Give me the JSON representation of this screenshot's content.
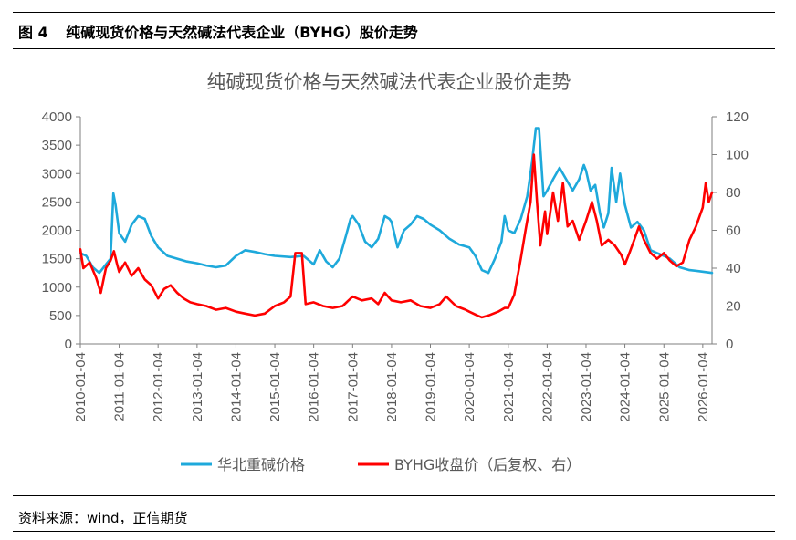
{
  "figure": {
    "number": "图 4",
    "caption": "纯碱现货价格与天然碱法代表企业（BYHG）股价走势",
    "source": "资料来源：wind，正信期货"
  },
  "chart_data": {
    "type": "line",
    "title": "纯碱现货价格与天然碱法代表企业股价走势",
    "x_ticks": [
      "2010-01-04",
      "2011-01-04",
      "2012-01-04",
      "2013-01-04",
      "2014-01-04",
      "2015-01-04",
      "2016-01-04",
      "2017-01-04",
      "2018-01-04",
      "2019-01-04",
      "2020-01-04",
      "2021-01-04",
      "2022-01-04",
      "2023-01-04",
      "2024-01-04",
      "2025-01-04",
      "2026-01-04"
    ],
    "x_range": [
      "2010-01-04",
      "2026-04-01"
    ],
    "y_left": {
      "range": [
        0,
        4000
      ],
      "ticks": [
        "0",
        "500",
        "1000",
        "1500",
        "2000",
        "2500",
        "3000",
        "3500",
        "4000"
      ]
    },
    "y_right": {
      "range": [
        0,
        120
      ],
      "ticks": [
        "0",
        "20",
        "40",
        "60",
        "80",
        "100",
        "120"
      ]
    },
    "legend_position": "bottom",
    "grid": false,
    "series": [
      {
        "name": "华北重碱价格",
        "axis": "left",
        "color": "#1EA9DB",
        "points": [
          [
            "2010-01-04",
            1600
          ],
          [
            "2010-03-01",
            1550
          ],
          [
            "2010-05-01",
            1350
          ],
          [
            "2010-07-01",
            1250
          ],
          [
            "2010-09-01",
            1400
          ],
          [
            "2010-10-15",
            1500
          ],
          [
            "2010-11-10",
            2650
          ],
          [
            "2010-12-01",
            2450
          ],
          [
            "2011-01-04",
            1950
          ],
          [
            "2011-03-01",
            1800
          ],
          [
            "2011-05-01",
            2100
          ],
          [
            "2011-07-01",
            2250
          ],
          [
            "2011-09-01",
            2200
          ],
          [
            "2011-11-01",
            1900
          ],
          [
            "2012-01-04",
            1700
          ],
          [
            "2012-04-01",
            1550
          ],
          [
            "2012-07-01",
            1500
          ],
          [
            "2012-10-01",
            1450
          ],
          [
            "2013-01-04",
            1420
          ],
          [
            "2013-04-01",
            1380
          ],
          [
            "2013-07-01",
            1350
          ],
          [
            "2013-10-01",
            1380
          ],
          [
            "2014-01-04",
            1550
          ],
          [
            "2014-04-01",
            1650
          ],
          [
            "2014-07-01",
            1620
          ],
          [
            "2014-10-01",
            1580
          ],
          [
            "2015-01-04",
            1550
          ],
          [
            "2015-06-01",
            1530
          ],
          [
            "2015-10-01",
            1550
          ],
          [
            "2016-01-04",
            1400
          ],
          [
            "2016-03-01",
            1650
          ],
          [
            "2016-05-01",
            1450
          ],
          [
            "2016-07-01",
            1350
          ],
          [
            "2016-09-01",
            1500
          ],
          [
            "2016-11-01",
            1900
          ],
          [
            "2016-12-15",
            2200
          ],
          [
            "2017-01-04",
            2250
          ],
          [
            "2017-03-01",
            2100
          ],
          [
            "2017-05-01",
            1800
          ],
          [
            "2017-07-01",
            1700
          ],
          [
            "2017-09-01",
            1850
          ],
          [
            "2017-11-01",
            2250
          ],
          [
            "2017-12-15",
            2200
          ],
          [
            "2018-01-04",
            2150
          ],
          [
            "2018-03-01",
            1700
          ],
          [
            "2018-05-01",
            2000
          ],
          [
            "2018-07-01",
            2100
          ],
          [
            "2018-09-01",
            2250
          ],
          [
            "2018-11-01",
            2200
          ],
          [
            "2019-01-04",
            2100
          ],
          [
            "2019-04-01",
            2000
          ],
          [
            "2019-07-01",
            1850
          ],
          [
            "2019-10-01",
            1750
          ],
          [
            "2020-01-04",
            1700
          ],
          [
            "2020-03-01",
            1550
          ],
          [
            "2020-05-01",
            1300
          ],
          [
            "2020-07-01",
            1250
          ],
          [
            "2020-09-01",
            1500
          ],
          [
            "2020-11-01",
            1800
          ],
          [
            "2020-12-01",
            2250
          ],
          [
            "2021-01-04",
            2000
          ],
          [
            "2021-03-01",
            1950
          ],
          [
            "2021-05-01",
            2200
          ],
          [
            "2021-07-01",
            2600
          ],
          [
            "2021-08-15",
            3200
          ],
          [
            "2021-09-20",
            3800
          ],
          [
            "2021-10-20",
            3800
          ],
          [
            "2021-12-01",
            2600
          ],
          [
            "2022-01-04",
            2700
          ],
          [
            "2022-03-01",
            2900
          ],
          [
            "2022-05-01",
            3100
          ],
          [
            "2022-07-01",
            2900
          ],
          [
            "2022-09-01",
            2700
          ],
          [
            "2022-11-01",
            2900
          ],
          [
            "2022-12-15",
            3150
          ],
          [
            "2023-01-04",
            3050
          ],
          [
            "2023-02-15",
            2700
          ],
          [
            "2023-04-01",
            2800
          ],
          [
            "2023-05-15",
            2300
          ],
          [
            "2023-06-20",
            2050
          ],
          [
            "2023-08-01",
            2300
          ],
          [
            "2023-09-01",
            3100
          ],
          [
            "2023-10-15",
            2500
          ],
          [
            "2023-11-20",
            3000
          ],
          [
            "2024-01-04",
            2450
          ],
          [
            "2024-03-01",
            2050
          ],
          [
            "2024-05-01",
            2150
          ],
          [
            "2024-07-01",
            2000
          ],
          [
            "2024-09-01",
            1650
          ],
          [
            "2024-11-01",
            1600
          ],
          [
            "2025-01-04",
            1550
          ],
          [
            "2025-03-01",
            1500
          ],
          [
            "2025-06-01",
            1350
          ],
          [
            "2025-09-01",
            1300
          ],
          [
            "2025-12-01",
            1280
          ],
          [
            "2026-04-01",
            1250
          ]
        ]
      },
      {
        "name": "BYHG收盘价（后复权、右）",
        "axis": "right",
        "color": "#FF0000",
        "points": [
          [
            "2010-01-04",
            50
          ],
          [
            "2010-02-01",
            40
          ],
          [
            "2010-04-01",
            43
          ],
          [
            "2010-06-01",
            35
          ],
          [
            "2010-07-15",
            27
          ],
          [
            "2010-09-01",
            40
          ],
          [
            "2010-10-15",
            44
          ],
          [
            "2010-11-15",
            49
          ],
          [
            "2010-12-15",
            42
          ],
          [
            "2011-01-04",
            38
          ],
          [
            "2011-03-01",
            43
          ],
          [
            "2011-05-01",
            36
          ],
          [
            "2011-07-01",
            40
          ],
          [
            "2011-09-01",
            34
          ],
          [
            "2011-11-01",
            31
          ],
          [
            "2012-01-04",
            24
          ],
          [
            "2012-03-01",
            29
          ],
          [
            "2012-05-01",
            31
          ],
          [
            "2012-07-01",
            27
          ],
          [
            "2012-09-01",
            24
          ],
          [
            "2012-11-01",
            22
          ],
          [
            "2013-01-04",
            21
          ],
          [
            "2013-04-01",
            20
          ],
          [
            "2013-07-01",
            18
          ],
          [
            "2013-10-01",
            19
          ],
          [
            "2014-01-04",
            17
          ],
          [
            "2014-04-01",
            16
          ],
          [
            "2014-07-01",
            15
          ],
          [
            "2014-10-01",
            16
          ],
          [
            "2015-01-04",
            20
          ],
          [
            "2015-04-01",
            22
          ],
          [
            "2015-06-01",
            25
          ],
          [
            "2015-07-15",
            48
          ],
          [
            "2015-09-15",
            48
          ],
          [
            "2015-10-20",
            21
          ],
          [
            "2016-01-04",
            22
          ],
          [
            "2016-04-01",
            20
          ],
          [
            "2016-07-01",
            19
          ],
          [
            "2016-10-01",
            20
          ],
          [
            "2017-01-04",
            25
          ],
          [
            "2017-04-01",
            23
          ],
          [
            "2017-07-01",
            24
          ],
          [
            "2017-09-01",
            21
          ],
          [
            "2017-11-01",
            27
          ],
          [
            "2018-01-04",
            23
          ],
          [
            "2018-04-01",
            22
          ],
          [
            "2018-07-01",
            23
          ],
          [
            "2018-10-01",
            20
          ],
          [
            "2019-01-04",
            19
          ],
          [
            "2019-04-01",
            21
          ],
          [
            "2019-06-01",
            25
          ],
          [
            "2019-09-01",
            20
          ],
          [
            "2019-12-01",
            18
          ],
          [
            "2020-01-04",
            17
          ],
          [
            "2020-03-20",
            15
          ],
          [
            "2020-05-01",
            14
          ],
          [
            "2020-07-01",
            15
          ],
          [
            "2020-10-01",
            17
          ],
          [
            "2020-12-01",
            19
          ],
          [
            "2021-01-04",
            19
          ],
          [
            "2021-03-01",
            26
          ],
          [
            "2021-05-01",
            45
          ],
          [
            "2021-06-15",
            60
          ],
          [
            "2021-08-01",
            75
          ],
          [
            "2021-09-01",
            100
          ],
          [
            "2021-10-01",
            75
          ],
          [
            "2021-11-01",
            52
          ],
          [
            "2021-12-15",
            70
          ],
          [
            "2022-01-04",
            58
          ],
          [
            "2022-03-01",
            80
          ],
          [
            "2022-04-15",
            65
          ],
          [
            "2022-06-01",
            85
          ],
          [
            "2022-07-15",
            62
          ],
          [
            "2022-09-01",
            65
          ],
          [
            "2022-11-01",
            55
          ],
          [
            "2023-01-04",
            65
          ],
          [
            "2023-03-01",
            75
          ],
          [
            "2023-04-15",
            65
          ],
          [
            "2023-06-01",
            52
          ],
          [
            "2023-08-01",
            55
          ],
          [
            "2023-10-01",
            52
          ],
          [
            "2023-12-01",
            47
          ],
          [
            "2024-01-04",
            42
          ],
          [
            "2024-02-15",
            48
          ],
          [
            "2024-04-01",
            55
          ],
          [
            "2024-05-15",
            62
          ],
          [
            "2024-07-01",
            55
          ],
          [
            "2024-09-01",
            48
          ],
          [
            "2024-11-01",
            45
          ],
          [
            "2025-01-04",
            48
          ],
          [
            "2025-03-01",
            44
          ],
          [
            "2025-05-01",
            41
          ],
          [
            "2025-07-01",
            43
          ],
          [
            "2025-09-01",
            55
          ],
          [
            "2025-11-01",
            62
          ],
          [
            "2026-01-04",
            72
          ],
          [
            "2026-02-01",
            85
          ],
          [
            "2026-03-01",
            75
          ],
          [
            "2026-04-01",
            80
          ]
        ]
      }
    ]
  }
}
